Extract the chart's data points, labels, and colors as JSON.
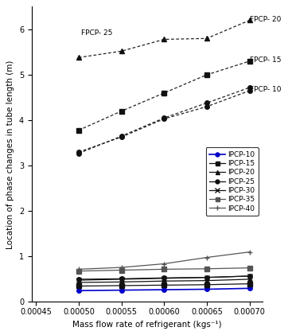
{
  "x_values": [
    0.0005,
    0.00055,
    0.0006,
    0.00065,
    0.0007
  ],
  "xlim": [
    0.000445,
    0.000715
  ],
  "ylim": [
    0,
    6.5
  ],
  "xlabel": "Mass flow rate of refrigerant (kgs⁻¹)",
  "ylabel": "Location of phase changes in tube length (m)",
  "FPCP_data": {
    "FPCP-20": [
      5.38,
      5.52,
      5.78,
      5.8,
      6.2
    ],
    "FPCP-25": [
      3.27,
      3.65,
      4.05,
      4.38,
      4.72
    ],
    "FPCP-15": [
      3.78,
      4.2,
      4.6,
      5.0,
      5.3
    ],
    "FPCP-10": [
      3.3,
      3.63,
      4.03,
      4.3,
      4.65
    ]
  },
  "FPCP_markers": {
    "FPCP-20": "^",
    "FPCP-25": "o",
    "FPCP-15": "s",
    "FPCP-10": "o"
  },
  "FPCP_annot": {
    "FPCP-20": [
      0.0007,
      6.22,
      "FPCP- 20"
    ],
    "FPCP-25": [
      0.000503,
      5.92,
      "FPCP- 25"
    ],
    "FPCP-15": [
      0.0007,
      5.32,
      "FPCP- 15"
    ],
    "FPCP-10": [
      0.0007,
      4.68,
      "FPCP- 10"
    ]
  },
  "IPCP_data": {
    "IPCP-10": [
      0.25,
      0.26,
      0.27,
      0.28,
      0.3
    ],
    "IPCP-15": [
      0.35,
      0.36,
      0.37,
      0.38,
      0.4
    ],
    "IPCP-20": [
      0.43,
      0.44,
      0.46,
      0.47,
      0.5
    ],
    "IPCP-25": [
      0.5,
      0.51,
      0.53,
      0.54,
      0.57
    ],
    "IPCP-30": [
      0.48,
      0.5,
      0.52,
      0.54,
      0.57
    ],
    "IPCP-35": [
      0.68,
      0.7,
      0.72,
      0.73,
      0.75
    ],
    "IPCP-40": [
      0.72,
      0.76,
      0.84,
      0.98,
      1.1
    ]
  },
  "IPCP_markers": {
    "IPCP-10": "o",
    "IPCP-15": "s",
    "IPCP-20": "^",
    "IPCP-25": "o",
    "IPCP-30": "x",
    "IPCP-35": "s",
    "IPCP-40": "+"
  },
  "IPCP_colors": {
    "IPCP-10": "#0000cc",
    "IPCP-15": "#111111",
    "IPCP-20": "#111111",
    "IPCP-25": "#111111",
    "IPCP-30": "#111111",
    "IPCP-35": "#555555",
    "IPCP-40": "#555555"
  },
  "yticks": [
    0,
    1,
    2,
    3,
    4,
    5,
    6
  ],
  "xticks": [
    0.00045,
    0.0005,
    0.00055,
    0.0006,
    0.00065,
    0.0007
  ]
}
